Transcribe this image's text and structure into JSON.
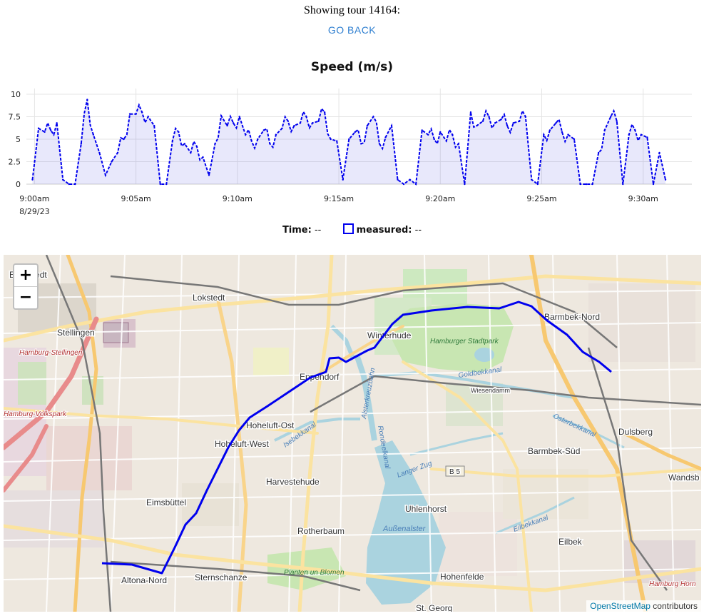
{
  "header": {
    "title": "Showing tour 14164:",
    "back_label": "GO BACK"
  },
  "chart_data": {
    "type": "line",
    "title": "Speed (m/s)",
    "xlabel": "",
    "ylabel": "",
    "ylim": [
      0,
      10
    ],
    "yticks": [
      "0",
      "2.5",
      "5",
      "7.5",
      "10"
    ],
    "xticks": [
      "9:00am",
      "9:05am",
      "9:10am",
      "9:15am",
      "9:20am",
      "9:25am",
      "9:30am"
    ],
    "x_date_label": "8/29/23",
    "grid": true,
    "series": [
      {
        "name": "measured",
        "color": "#0000ee",
        "x_minutes_after_9am": [
          -0.1,
          0.2,
          0.5,
          0.8,
          1.1,
          1.4,
          1.7,
          2.0,
          2.3,
          2.6,
          2.9,
          3.2,
          3.5,
          3.8,
          4.1,
          4.4,
          4.7,
          5.0,
          5.3,
          5.6,
          5.9,
          6.2,
          6.5,
          6.8,
          7.1,
          7.4,
          7.7,
          8.0,
          8.3,
          8.6,
          8.9,
          9.2,
          9.5,
          9.8,
          10.1,
          10.4,
          10.7,
          11.0,
          11.3,
          11.6,
          11.9,
          12.2,
          12.5,
          12.8,
          13.1,
          13.4,
          13.7,
          14.0,
          14.3,
          14.6,
          14.9,
          15.2,
          15.5,
          15.8,
          16.1,
          16.4,
          16.7,
          17.0,
          17.3,
          17.6,
          17.9,
          18.2,
          18.5,
          18.8,
          19.1,
          19.4,
          19.7,
          20.0,
          20.3,
          20.6,
          20.9,
          21.2,
          21.5,
          21.8,
          22.1,
          22.4,
          22.7,
          23.0,
          23.3,
          23.6,
          23.9,
          24.2,
          24.5,
          24.8,
          25.1,
          25.4,
          25.7,
          26.0,
          26.3,
          26.6,
          26.9,
          27.2,
          27.5,
          27.8,
          28.1,
          28.4,
          28.7,
          29.0,
          29.3,
          29.6,
          29.9,
          30.2,
          30.5,
          30.8,
          31.1
        ],
        "values": [
          0.5,
          6.2,
          5.8,
          6.0,
          6.8,
          0.5,
          0.0,
          0.0,
          4.5,
          9.4,
          5.5,
          3.5,
          1.0,
          2.5,
          3.5,
          5.0,
          7.8,
          7.8,
          8.0,
          7.5,
          6.5,
          0.0,
          0.0,
          4.8,
          5.8,
          4.5,
          3.5,
          4.2,
          3.0,
          1.0,
          4.5,
          7.6,
          6.5,
          6.8,
          7.5,
          5.5,
          4.8,
          5.0,
          6.0,
          4.5,
          5.5,
          6.2,
          7.0,
          6.5,
          6.8,
          7.5,
          6.8,
          7.0,
          8.0,
          5.0,
          4.8,
          0.5,
          5.0,
          5.8,
          4.5,
          6.5,
          7.5,
          4.5,
          5.2,
          6.5,
          0.5,
          0.0,
          0.5,
          0.0,
          6.0,
          5.5,
          5.0,
          5.8,
          4.8,
          5.5,
          4.5,
          0.0,
          8.0,
          6.5,
          7.0,
          7.5,
          6.8,
          7.2,
          6.5,
          6.8,
          7.0,
          7.5,
          0.5,
          0.0,
          5.5,
          6.0,
          6.8,
          5.8,
          5.5,
          5.0,
          0.0,
          0.0,
          0.0,
          3.5,
          6.0,
          7.5,
          7.0,
          0.0,
          5.5,
          6.0,
          5.5,
          5.2,
          0.0,
          3.5,
          0.5
        ]
      }
    ]
  },
  "legend": {
    "time_label": "Time:",
    "time_value": "--",
    "series_label": "measured:",
    "series_value": "--"
  },
  "map": {
    "zoom_in": "+",
    "zoom_out": "−",
    "attribution_link": "OpenStreetMap",
    "attribution_text": " contributors",
    "route_color": "#0000ee",
    "places": [
      "Eidelstedt",
      "Lokstedt",
      "Stellingen",
      "Hamburg-Stellingen",
      "Winterhude",
      "Barmbek-Nord",
      "Eppendorf",
      "Hamburger Stadtpark",
      "Goldbekkanal",
      "Wiesendamm",
      "Hoheluft-Ost",
      "Hoheluft-West",
      "Isebekkanal",
      "Alsterkreuzbahn",
      "Barmbek-Süd",
      "Dulsberg",
      "Osterbekkanal",
      "B 5",
      "Harvestehude",
      "Langer Zug",
      "Wandsb",
      "Eimsbüttel",
      "Uhlenhorst",
      "Rondeelkanal",
      "Rotherbaum",
      "Außenalster",
      "Eilbekkanal",
      "Eilbek",
      "Sternschanze",
      "Altona-Nord",
      "Planten un Blomen",
      "Hohenfelde",
      "Hamburg Horn",
      "St. Georg",
      "Hamburg-Volkspark"
    ]
  }
}
